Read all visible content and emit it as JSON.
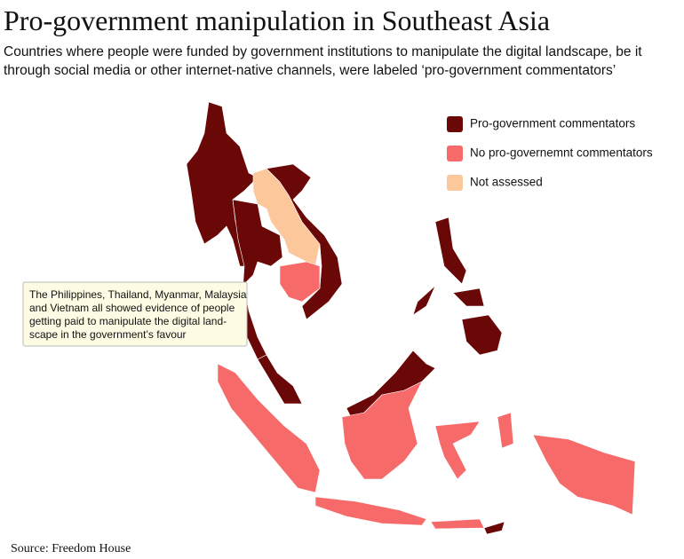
{
  "title": "Pro-government manipulation in Southeast Asia",
  "subtitle": [
    "Countries where people were funded by government institutions to manipulate the digital landscape, be it",
    "through social media or other internet-native channels, were labeled ‘pro-government commentators’"
  ],
  "legend": [
    {
      "label": "Pro-government commentators",
      "color": "#6a0707"
    },
    {
      "label": "No pro-governemnt commentators",
      "color": "#f76a6a"
    },
    {
      "label": "Not assessed",
      "color": "#fcc79b"
    }
  ],
  "annotation": [
    "The Philippines, Thailand, Myanmar, Malaysia",
    "and Vietnam all showed evidence of people",
    "getting paid to manipulate the digital land-",
    "scape in the government’s favour"
  ],
  "source": "Source: Freedom House"
}
